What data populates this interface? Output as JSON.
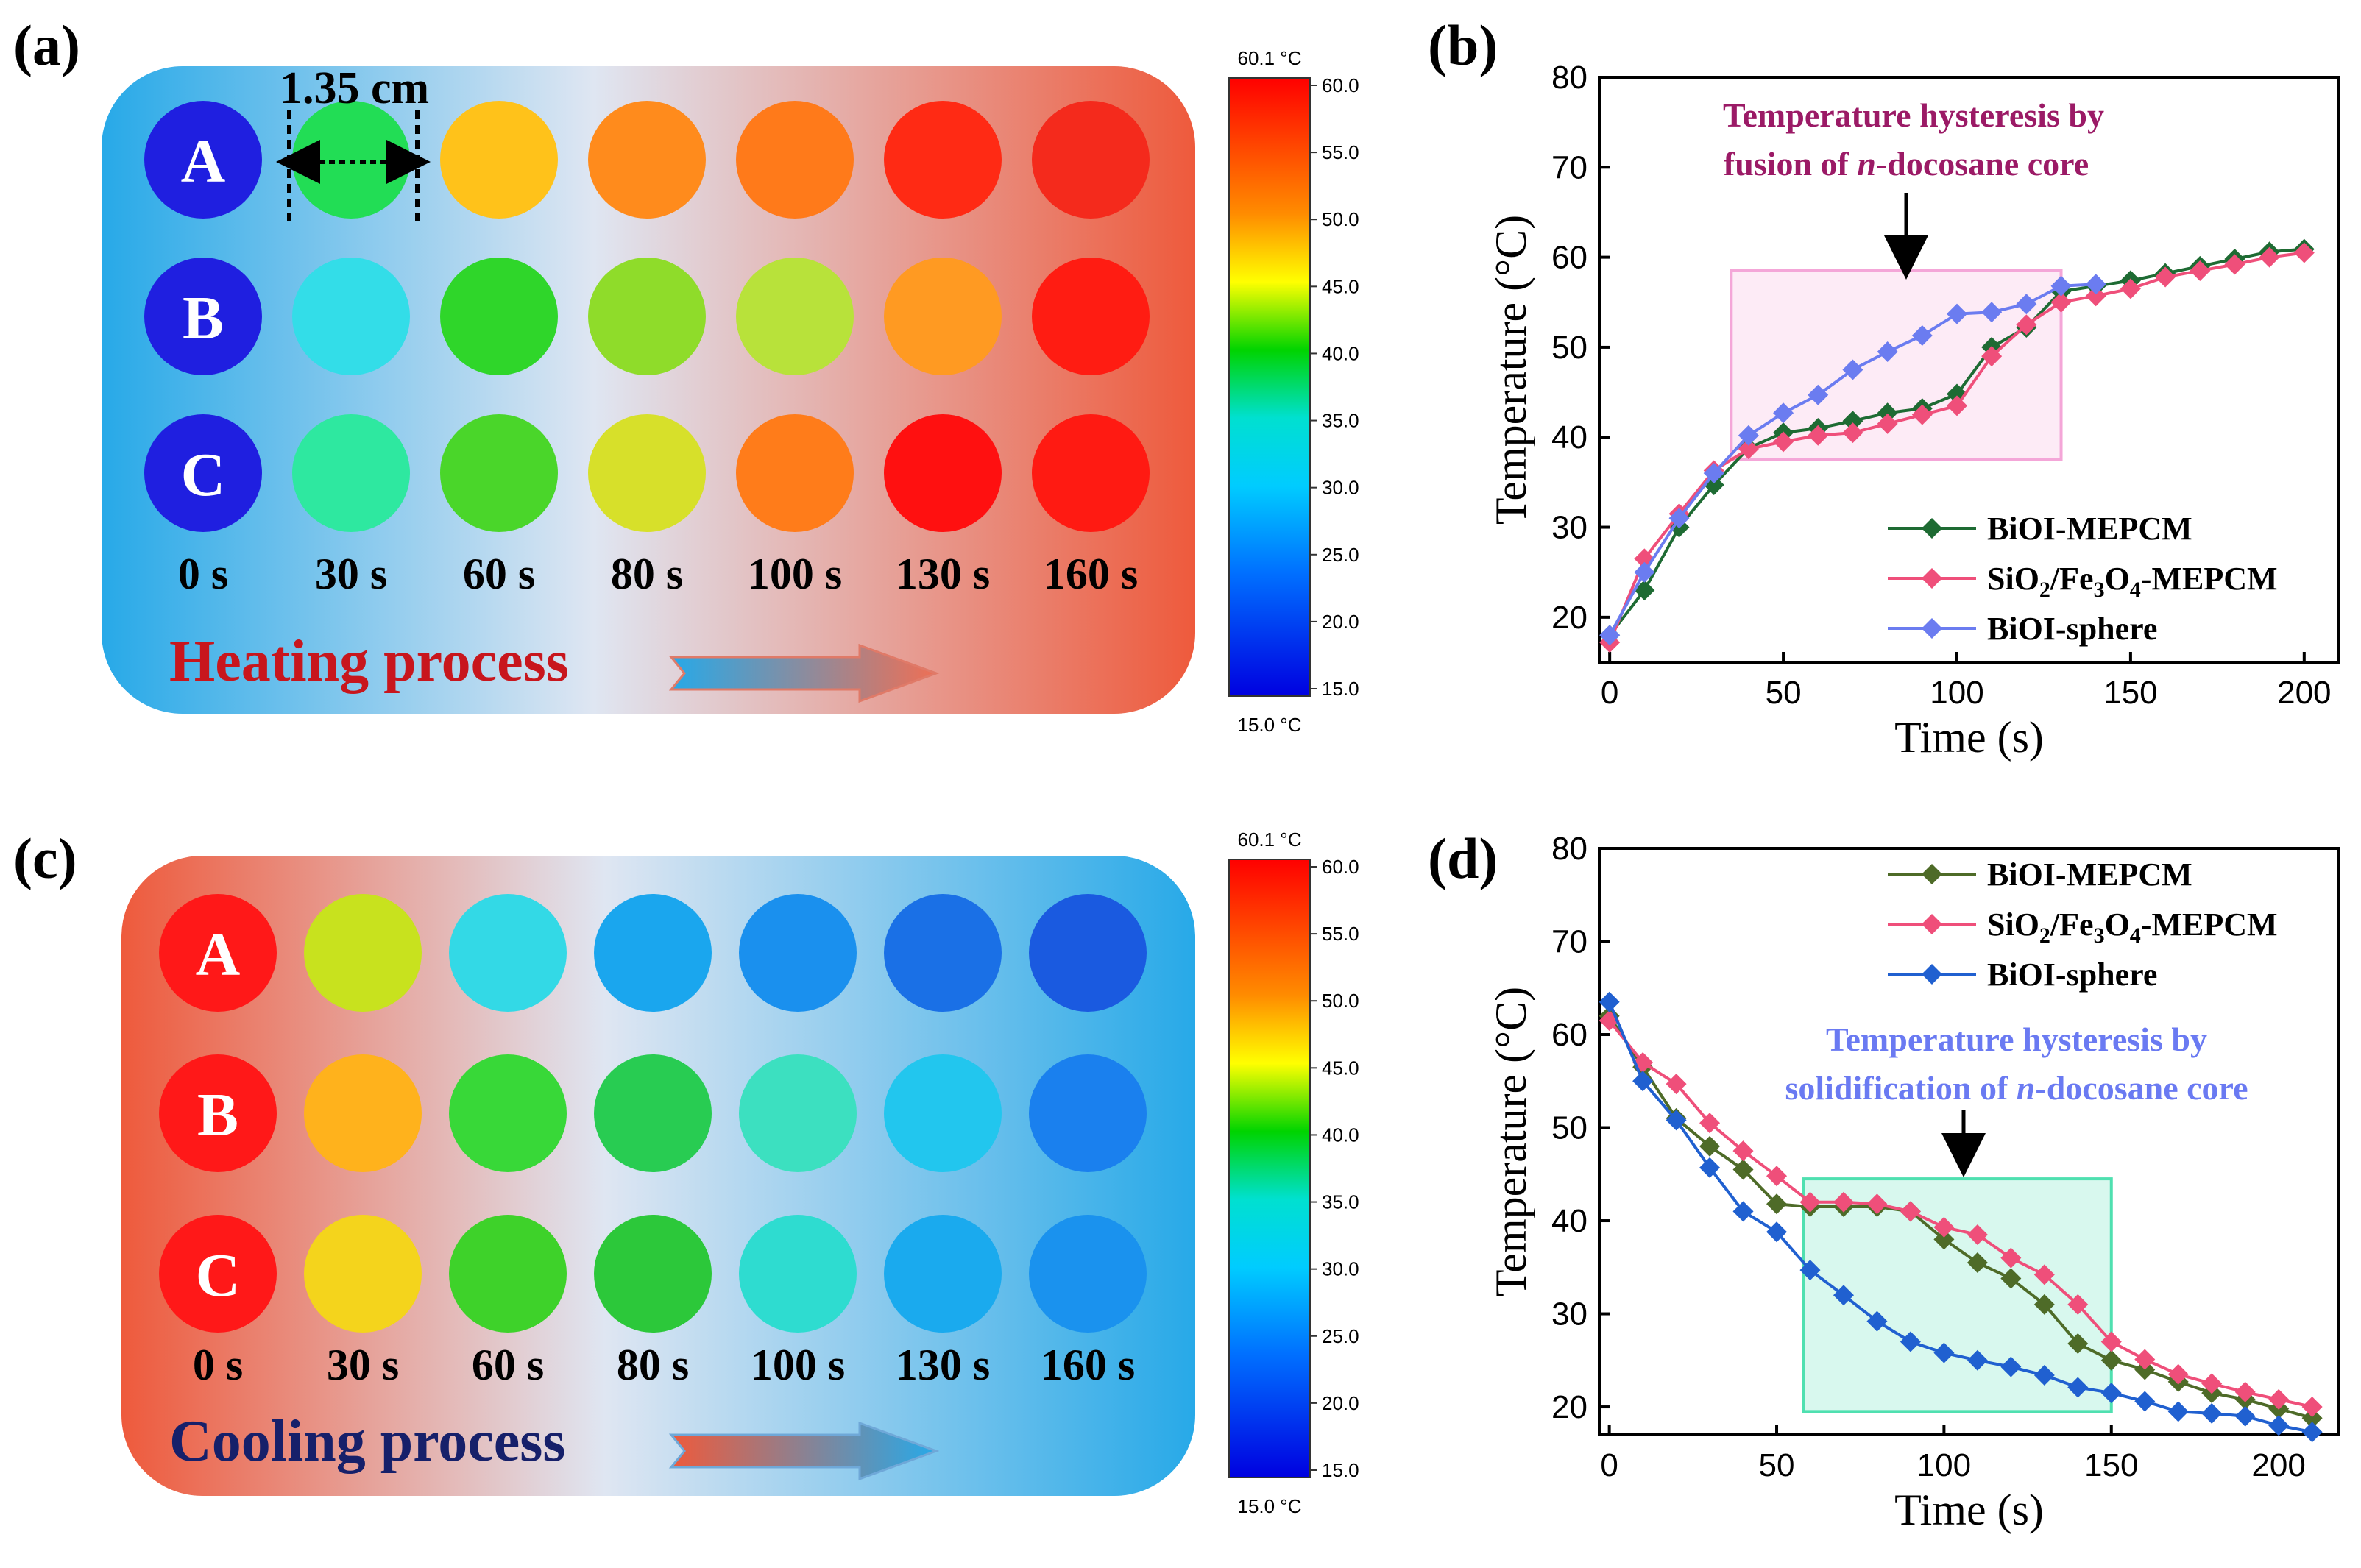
{
  "panels": {
    "a": {
      "label": "(a)",
      "row_labels": [
        "A",
        "B",
        "C"
      ],
      "time_labels": [
        "0 s",
        "30 s",
        "60 s",
        "80 s",
        "100 s",
        "130 s",
        "160 s"
      ],
      "size_label": "1.35 cm",
      "process_label": "Heating process",
      "colorbar": {
        "max_label": "60.1 °C",
        "min_label": "15.0 °C",
        "ticks": [
          "60.0",
          "55.0",
          "50.0",
          "45.0",
          "40.0",
          "35.0",
          "30.0",
          "25.0",
          "20.0",
          "15.0"
        ]
      },
      "circle_colors": [
        [
          "#1f1fe0",
          "#22dd55",
          "#ffc21a",
          "#ff8b1c",
          "#ff7a1a",
          "#ff2a14",
          "#f42a1c"
        ],
        [
          "#1f1fe0",
          "#33dde8",
          "#2fd62a",
          "#8fdc2a",
          "#b8e23a",
          "#ff9a22",
          "#ff1c12"
        ],
        [
          "#1f1fe0",
          "#2ee8a0",
          "#4ad62a",
          "#d7e02a",
          "#ff7c1a",
          "#ff1010",
          "#ff1a12"
        ]
      ]
    },
    "c": {
      "label": "(c)",
      "row_labels": [
        "A",
        "B",
        "C"
      ],
      "time_labels": [
        "0 s",
        "30 s",
        "60 s",
        "80 s",
        "100 s",
        "130 s",
        "160 s"
      ],
      "process_label": "Cooling process",
      "colorbar": {
        "max_label": "60.1 °C",
        "min_label": "15.0 °C",
        "ticks": [
          "60.0",
          "55.0",
          "50.0",
          "45.0",
          "40.0",
          "35.0",
          "30.0",
          "25.0",
          "20.0",
          "15.0"
        ]
      },
      "circle_colors": [
        [
          "#ff1818",
          "#c8e21e",
          "#33d9e6",
          "#1aa6ee",
          "#1a90ee",
          "#1a70e6",
          "#1a5ae0"
        ],
        [
          "#ff1818",
          "#ffb21c",
          "#38d838",
          "#28cc52",
          "#3ce0c0",
          "#22c6ee",
          "#1a80ee"
        ],
        [
          "#ff1818",
          "#f4d41c",
          "#3ed22a",
          "#2cc83a",
          "#2edcd0",
          "#1aaaee",
          "#1a92ee"
        ]
      ]
    },
    "b": {
      "label": "(b)",
      "annotation_line1": "Temperature hysteresis by",
      "annotation_line2_pre": "fusion of ",
      "annotation_line2_it": "n",
      "annotation_line2_post": "-docosane core"
    },
    "d": {
      "label": "(d)",
      "annotation_line1": "Temperature hysteresis by",
      "annotation_line2_pre": "solidification of ",
      "annotation_line2_it": "n",
      "annotation_line2_post": "-docosane core"
    }
  },
  "chart_data": [
    {
      "id": "b",
      "type": "line",
      "xlabel": "Time (s)",
      "ylabel": "Temperature (°C)",
      "xlim": [
        -3,
        210
      ],
      "ylim": [
        15,
        80
      ],
      "xticks": [
        0,
        50,
        100,
        150,
        200
      ],
      "yticks": [
        20,
        30,
        40,
        50,
        60,
        70,
        80
      ],
      "legend_position": "bottom-right",
      "highlight": {
        "x": [
          35,
          130
        ],
        "y": [
          37.5,
          58.5
        ],
        "color": "#f4a6d8"
      },
      "series": [
        {
          "name": "BiOI-MEPCM",
          "color": "#1e6b33",
          "x": [
            0,
            10,
            20,
            30,
            40,
            50,
            60,
            70,
            80,
            90,
            100,
            110,
            120,
            130,
            140,
            150,
            160,
            170,
            180,
            190,
            200
          ],
          "values": [
            18,
            23,
            30,
            34.7,
            38.8,
            40.5,
            41,
            41.8,
            42.7,
            43.2,
            44.8,
            50,
            52.2,
            56.2,
            56.8,
            57.4,
            58.2,
            59,
            59.8,
            60.6,
            60.9
          ]
        },
        {
          "name": "SiO2/Fe3O4-MEPCM",
          "color": "#ef4f7a",
          "x": [
            0,
            10,
            20,
            30,
            40,
            50,
            60,
            70,
            80,
            90,
            100,
            110,
            120,
            130,
            140,
            150,
            160,
            170,
            180,
            190,
            200
          ],
          "values": [
            17.2,
            26.5,
            31.5,
            36.3,
            38.7,
            39.5,
            40.2,
            40.5,
            41.5,
            42.5,
            43.5,
            49,
            52.5,
            55,
            55.7,
            56.5,
            57.8,
            58.5,
            59.2,
            60,
            60.5
          ]
        },
        {
          "name": "BiOI-sphere",
          "color": "#6b7cf0",
          "x": [
            0,
            10,
            20,
            30,
            40,
            50,
            60,
            70,
            80,
            90,
            100,
            110,
            120,
            130,
            140
          ],
          "values": [
            18,
            25,
            31,
            36,
            40.2,
            42.7,
            44.7,
            47.5,
            49.5,
            51.3,
            53.7,
            53.9,
            54.8,
            56.8,
            57
          ]
        }
      ]
    },
    {
      "id": "d",
      "type": "line",
      "xlabel": "Time (s)",
      "ylabel": "Temperature (°C)",
      "xlim": [
        -3,
        218
      ],
      "ylim": [
        17,
        80
      ],
      "xticks": [
        0,
        50,
        100,
        150,
        200
      ],
      "yticks": [
        20,
        30,
        40,
        50,
        60,
        70,
        80
      ],
      "legend_position": "top-right",
      "highlight": {
        "x": [
          58,
          150
        ],
        "y": [
          19.5,
          44.5
        ],
        "color": "#4fe0b0"
      },
      "series": [
        {
          "name": "BiOI-MEPCM",
          "color": "#4e6b28",
          "x": [
            0,
            10,
            20,
            30,
            40,
            50,
            60,
            70,
            80,
            90,
            100,
            110,
            120,
            130,
            140,
            150,
            160,
            170,
            180,
            190,
            200,
            210
          ],
          "values": [
            62,
            56.5,
            51,
            48,
            45.5,
            41.8,
            41.5,
            41.5,
            41.5,
            41,
            38,
            35.5,
            33.8,
            31,
            26.8,
            25,
            24,
            22.7,
            21.5,
            20.8,
            19.8,
            18.8
          ]
        },
        {
          "name": "SiO2/Fe3O4-MEPCM",
          "color": "#ef4f7a",
          "x": [
            0,
            10,
            20,
            30,
            40,
            50,
            60,
            70,
            80,
            90,
            100,
            110,
            120,
            130,
            140,
            150,
            160,
            170,
            180,
            190,
            200,
            210
          ],
          "values": [
            61.5,
            57,
            54.7,
            50.5,
            47.5,
            44.8,
            42,
            42,
            41.8,
            41,
            39.3,
            38.5,
            36,
            34.2,
            31,
            27,
            25.1,
            23.5,
            22.5,
            21.6,
            20.8,
            20
          ]
        },
        {
          "name": "BiOI-sphere",
          "color": "#2060d0",
          "x": [
            0,
            10,
            20,
            30,
            40,
            50,
            60,
            70,
            80,
            90,
            100,
            110,
            120,
            130,
            140,
            150,
            160,
            170,
            180,
            190,
            200,
            210
          ],
          "values": [
            63.5,
            55,
            50.8,
            45.7,
            41,
            38.8,
            34.7,
            32,
            29.2,
            27,
            25.8,
            25,
            24.3,
            23.4,
            22.1,
            21.5,
            20.6,
            19.5,
            19.3,
            19,
            18,
            17.3
          ]
        }
      ]
    }
  ]
}
